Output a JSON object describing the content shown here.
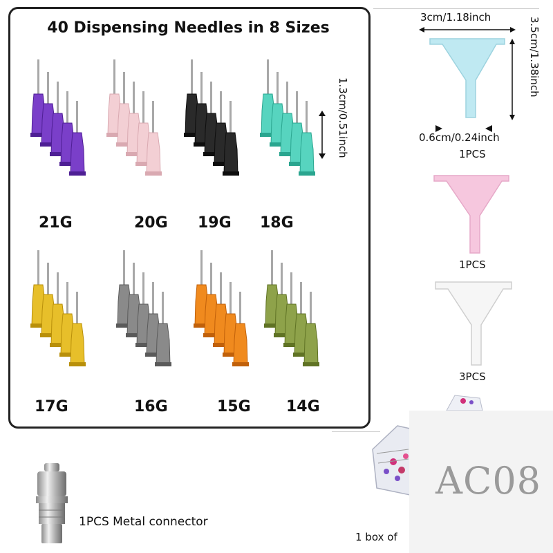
{
  "title": "40 Dispensing Needles in 8 Sizes",
  "needle_sizes": [
    {
      "gauge": "21G",
      "color": "#7a3fc9",
      "color_dark": "#4e1f94"
    },
    {
      "gauge": "20G",
      "color": "#f3cfd4",
      "color_dark": "#d9a9b1"
    },
    {
      "gauge": "19G",
      "color": "#2a2a2a",
      "color_dark": "#0d0d0d"
    },
    {
      "gauge": "18G",
      "color": "#57d4bf",
      "color_dark": "#2aa58f"
    },
    {
      "gauge": "17G",
      "color": "#e7bf2a",
      "color_dark": "#b88f0a"
    },
    {
      "gauge": "16G",
      "color": "#8a8a8a",
      "color_dark": "#5a5a5a"
    },
    {
      "gauge": "15G",
      "color": "#f08a1e",
      "color_dark": "#c0600a"
    },
    {
      "gauge": "14G",
      "color": "#8ea24a",
      "color_dark": "#5f7224"
    }
  ],
  "needle_length_label": "1.3cm/0.51inch",
  "funnel": {
    "width_label": "3cm/1.18inch",
    "height_label": "3.5cm/1.38inch",
    "tip_label": "0.6cm/0.24inch",
    "items": [
      {
        "qty": "1PCS",
        "color": "#bfe9f2"
      },
      {
        "qty": "1PCS",
        "color": "#f6c7de"
      },
      {
        "qty": "3PCS",
        "color": "#f4f4f4"
      }
    ]
  },
  "connector_label": "1PCS Metal connector",
  "box_label": "1 box of",
  "watermark": "AC08"
}
